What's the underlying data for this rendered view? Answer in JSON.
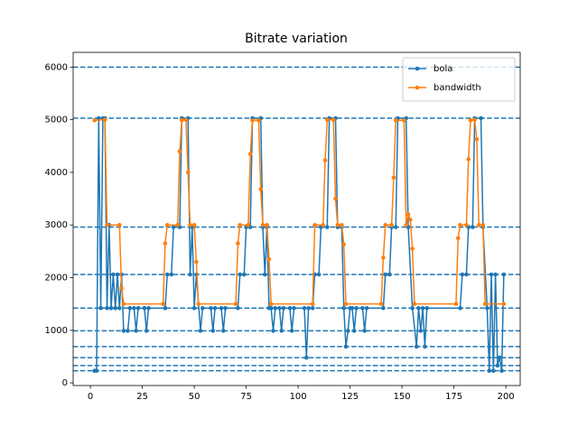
{
  "chart_data": {
    "type": "line",
    "title": "Bitrate variation",
    "xlim": [
      -8.3,
      206.9
    ],
    "ylim": [
      -50,
      6280
    ],
    "xticks": [
      0,
      25,
      50,
      75,
      100,
      125,
      150,
      175,
      200
    ],
    "yticks": [
      0,
      1000,
      2000,
      3000,
      4000,
      5000,
      6000
    ],
    "hlines": [
      230,
      330,
      480,
      690,
      990,
      1420,
      2060,
      2960,
      5030,
      6000
    ],
    "hline_color": "#1f77b4",
    "legend": "upper right",
    "series": [
      {
        "name": "bola",
        "color": "#1f77b4",
        "x": [
          2,
          3,
          4,
          5,
          6,
          7,
          8,
          9,
          10,
          11,
          12,
          13,
          14,
          15,
          16,
          18,
          19,
          21,
          22,
          23,
          26,
          27,
          28,
          36,
          37,
          39,
          40,
          43,
          44,
          47,
          48,
          49,
          50,
          51,
          53,
          54,
          58,
          59,
          60,
          63,
          64,
          65,
          71,
          72,
          74,
          75,
          77,
          78,
          82,
          83,
          84,
          85,
          86,
          87,
          88,
          89,
          91,
          92,
          93,
          96,
          97,
          98,
          103,
          104,
          105,
          107,
          108,
          110,
          111,
          114,
          115,
          118,
          119,
          121,
          122,
          123,
          124,
          125,
          126,
          127,
          128,
          131,
          132,
          133,
          141,
          142,
          144,
          145,
          147,
          148,
          152,
          153,
          155,
          157,
          158,
          159,
          160,
          161,
          162,
          178,
          179,
          181,
          182,
          184,
          185,
          188,
          189,
          191,
          192,
          193,
          194,
          195,
          196,
          197,
          198,
          199
        ],
        "values": [
          230,
          230,
          5030,
          1420,
          5030,
          5030,
          1420,
          3000,
          1420,
          2060,
          1420,
          2060,
          1420,
          2060,
          990,
          990,
          1420,
          1420,
          990,
          1420,
          1420,
          990,
          1420,
          1420,
          2060,
          2060,
          2960,
          2960,
          5030,
          5030,
          2060,
          2960,
          1420,
          2060,
          990,
          1420,
          1420,
          990,
          1420,
          1420,
          990,
          1420,
          1420,
          2060,
          2060,
          2960,
          2960,
          5030,
          5030,
          2960,
          2060,
          2960,
          1420,
          1420,
          990,
          1420,
          1420,
          990,
          1420,
          1420,
          990,
          1420,
          1420,
          480,
          1420,
          1420,
          2060,
          2060,
          2960,
          2960,
          5030,
          5030,
          2960,
          2960,
          1420,
          690,
          990,
          1420,
          1420,
          990,
          1420,
          1420,
          990,
          1420,
          1420,
          2060,
          2060,
          2960,
          2960,
          5030,
          5030,
          2960,
          1420,
          690,
          1420,
          990,
          1420,
          690,
          1420,
          1420,
          2060,
          2060,
          2960,
          2960,
          5030,
          5030,
          2960,
          1420,
          230,
          2060,
          230,
          2060,
          330,
          480,
          230,
          2060
        ]
      },
      {
        "name": "bandwidth",
        "color": "#ff7f0e",
        "x": [
          2,
          7,
          8,
          14,
          15,
          16,
          35,
          36,
          37,
          42,
          43,
          44,
          46,
          47,
          48,
          50,
          51,
          52,
          70,
          71,
          72,
          76,
          77,
          78,
          81,
          82,
          83,
          85,
          86,
          87,
          107,
          108,
          112,
          113,
          114,
          117,
          118,
          119,
          121,
          122,
          123,
          140,
          141,
          142,
          145,
          146,
          147,
          151,
          152,
          153,
          154,
          155,
          156,
          176,
          177,
          178,
          181,
          182,
          183,
          185,
          186,
          187,
          189,
          190,
          199
        ],
        "values": [
          4990,
          5000,
          3000,
          3000,
          1800,
          1500,
          1500,
          2650,
          3000,
          3000,
          4400,
          4990,
          5000,
          4000,
          3000,
          3000,
          2300,
          1500,
          1500,
          2650,
          3000,
          3000,
          4350,
          4990,
          4990,
          3680,
          3000,
          3000,
          2350,
          1500,
          1500,
          3000,
          3000,
          4230,
          5000,
          5000,
          3500,
          3000,
          3000,
          2630,
          1500,
          1500,
          2380,
          3000,
          3000,
          3900,
          4990,
          4990,
          3000,
          3200,
          3100,
          2550,
          1500,
          1500,
          2750,
          3000,
          3000,
          4250,
          4990,
          5000,
          4630,
          3000,
          3000,
          1500,
          1500
        ]
      }
    ]
  }
}
